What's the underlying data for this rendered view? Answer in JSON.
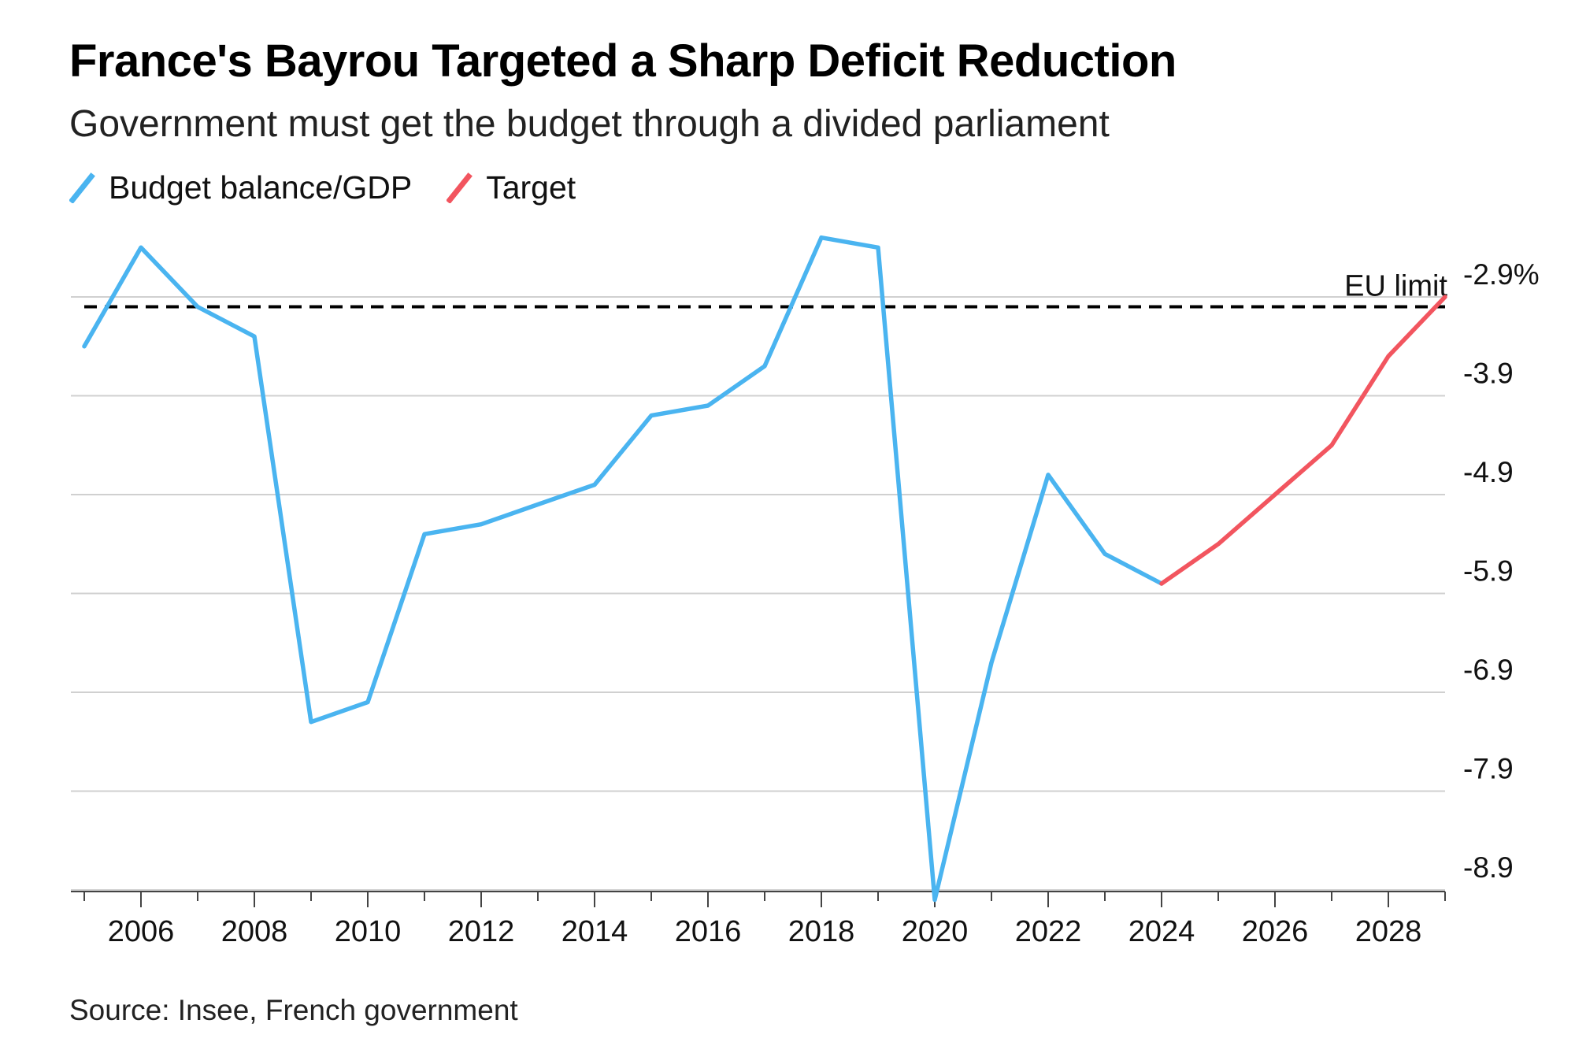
{
  "header": {
    "title": "France's Bayrou Targeted a Sharp Deficit Reduction",
    "subtitle": "Government must get the budget through a divided parliament"
  },
  "legend": {
    "items": [
      {
        "label": "Budget balance/GDP",
        "color": "#4ab4f0"
      },
      {
        "label": "Target",
        "color": "#f2555f"
      }
    ]
  },
  "footer": {
    "source": "Source: Insee, French government"
  },
  "chart_data": {
    "type": "line",
    "title": "France's Bayrou Targeted a Sharp Deficit Reduction",
    "subtitle": "Government must get the budget through a divided parliament",
    "xlabel": "",
    "ylabel": "",
    "xlim": [
      2005,
      2029
    ],
    "ylim": [
      -9.0,
      -2.3
    ],
    "grid": true,
    "legend_position": "top-left",
    "x_ticks": [
      2006,
      2008,
      2010,
      2012,
      2014,
      2016,
      2018,
      2020,
      2022,
      2024,
      2026,
      2028
    ],
    "y_ticks": [
      {
        "value": -2.9,
        "label": "-2.9%"
      },
      {
        "value": -3.9,
        "label": "-3.9"
      },
      {
        "value": -4.9,
        "label": "-4.9"
      },
      {
        "value": -5.9,
        "label": "-5.9"
      },
      {
        "value": -6.9,
        "label": "-6.9"
      },
      {
        "value": -7.9,
        "label": "-7.9"
      },
      {
        "value": -8.9,
        "label": "-8.9"
      }
    ],
    "reference_line": {
      "value": -3.0,
      "label": "EU limit",
      "style": "dashed",
      "color": "#000000"
    },
    "series": [
      {
        "name": "Budget balance/GDP",
        "color": "#4ab4f0",
        "points": [
          [
            2005,
            -3.4
          ],
          [
            2006,
            -2.4
          ],
          [
            2007,
            -3.0
          ],
          [
            2008,
            -3.3
          ],
          [
            2009,
            -7.2
          ],
          [
            2010,
            -7.0
          ],
          [
            2011,
            -5.3
          ],
          [
            2012,
            -5.2
          ],
          [
            2013,
            -5.0
          ],
          [
            2014,
            -4.8
          ],
          [
            2015,
            -4.1
          ],
          [
            2016,
            -4.0
          ],
          [
            2017,
            -3.6
          ],
          [
            2018,
            -2.3
          ],
          [
            2019,
            -2.4
          ],
          [
            2020,
            -9.0
          ],
          [
            2021,
            -6.6
          ],
          [
            2022,
            -4.7
          ],
          [
            2023,
            -5.5
          ],
          [
            2024,
            -5.8
          ]
        ]
      },
      {
        "name": "Target",
        "color": "#f2555f",
        "points": [
          [
            2024,
            -5.8
          ],
          [
            2025,
            -5.4
          ],
          [
            2026,
            -4.9
          ],
          [
            2027,
            -4.4
          ],
          [
            2028,
            -3.5
          ],
          [
            2029,
            -2.9
          ]
        ]
      }
    ]
  }
}
